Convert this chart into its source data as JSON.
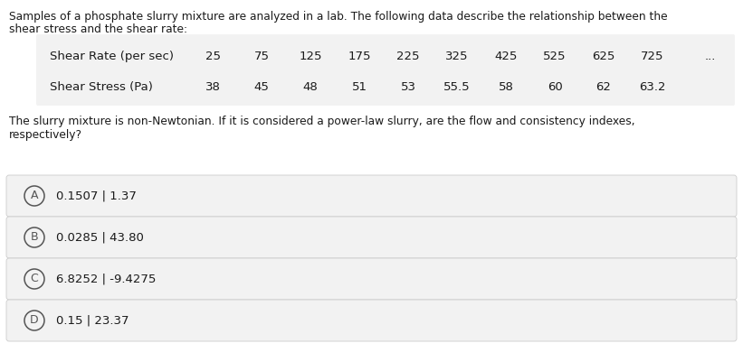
{
  "intro_text_line1": "Samples of a phosphate slurry mixture are analyzed in a lab. The following data describe the relationship between the",
  "intro_text_line2": "shear stress and the shear rate:",
  "table_header_label": "Shear Rate (per sec)",
  "table_data_label": "Shear Stress (Pa)",
  "shear_rates": [
    "25",
    "75",
    "125",
    "175",
    "225",
    "325",
    "425",
    "525",
    "625",
    "725"
  ],
  "shear_stresses": [
    "38",
    "45",
    "48",
    "51",
    "53",
    "55.5",
    "58",
    "60",
    "62",
    "63.2"
  ],
  "question_line1": "The slurry mixture is non-Newtonian. If it is considered a power-law slurry, are the flow and consistency indexes,",
  "question_line2": "respectively?",
  "options": [
    {
      "letter": "A",
      "text": "0.1507 | 1.37"
    },
    {
      "letter": "B",
      "text": "0.0285 | 43.80"
    },
    {
      "letter": "C",
      "text": "6.8252 | -9.4275"
    },
    {
      "letter": "D",
      "text": "0.15 | 23.37"
    }
  ],
  "bg_color": "#ffffff",
  "table_bg_color": "#f2f2f2",
  "option_bg_color": "#f2f2f2",
  "text_color": "#1a1a1a",
  "circle_color": "#555555",
  "border_color": "#cccccc",
  "font_size_body": 8.8,
  "font_size_table": 9.5,
  "font_size_option": 9.5
}
